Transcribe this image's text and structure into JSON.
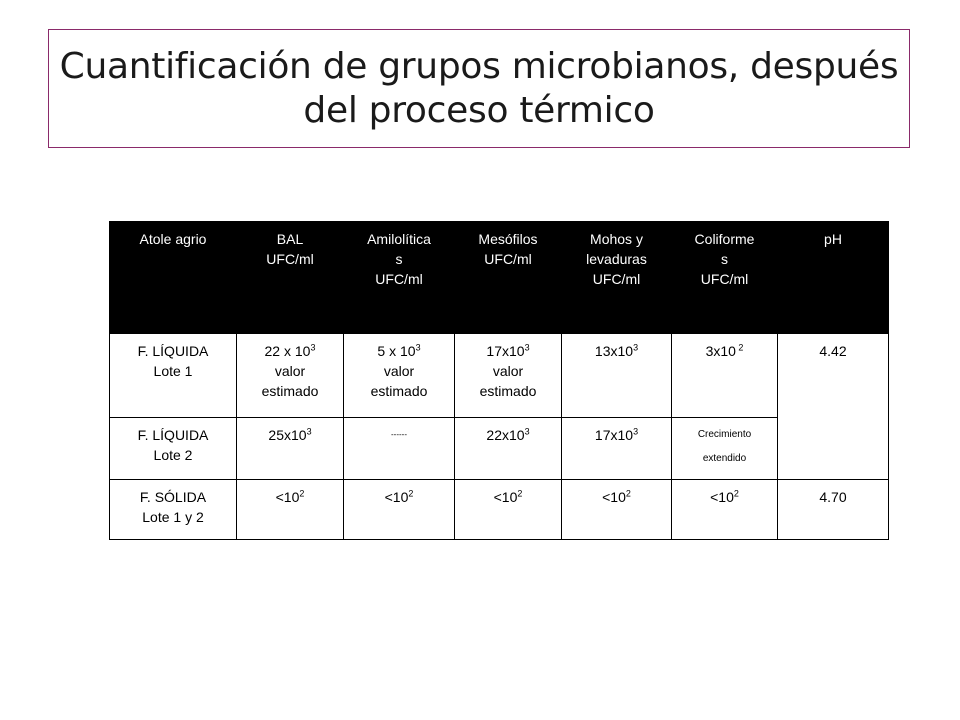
{
  "title": {
    "line1": "Cuantificación de grupos microbianos, después",
    "line2": "del proceso térmico"
  },
  "table": {
    "headers": [
      {
        "lines": [
          "Atole agrio"
        ]
      },
      {
        "lines": [
          "BAL",
          "UFC/ml"
        ]
      },
      {
        "lines": [
          "Amilolítica",
          "s",
          "UFC/ml"
        ]
      },
      {
        "lines": [
          "Mesófilos",
          "UFC/ml"
        ]
      },
      {
        "lines": [
          "Mohos y",
          "levaduras",
          "UFC/ml"
        ]
      },
      {
        "lines": [
          "Coliforme",
          "s",
          "UFC/ml"
        ]
      },
      {
        "lines": [
          "pH"
        ]
      }
    ],
    "rows": [
      {
        "label": [
          "F. LÍQUIDA",
          "Lote 1"
        ],
        "bal": {
          "base": "22 x 10",
          "exp": "3",
          "note": [
            "valor",
            "estimado"
          ]
        },
        "amilo": {
          "base": "5 x 10",
          "exp": "3",
          "note": [
            "valor",
            "estimado"
          ]
        },
        "meso": {
          "base": "17x10",
          "exp": "3",
          "note": [
            "valor",
            "estimado"
          ]
        },
        "mohos": {
          "base": "13x10",
          "exp": "3"
        },
        "coli": {
          "base": "3x10",
          "exp": " 2"
        },
        "ph": "4.42"
      },
      {
        "label": [
          "F. LÍQUIDA",
          "Lote 2"
        ],
        "bal": {
          "base": "25x10",
          "exp": "3"
        },
        "amilo": "------",
        "meso": {
          "base": "22x10",
          "exp": "3"
        },
        "mohos": {
          "base": "17x10",
          "exp": "3"
        },
        "coli": [
          "Crecimiento",
          "extendido"
        ]
      },
      {
        "label": [
          "F. SÓLIDA",
          "Lote 1 y 2"
        ],
        "bal": {
          "base": "<10",
          "exp": "2"
        },
        "amilo": {
          "base": "<10",
          "exp": "2"
        },
        "meso": {
          "base": "<10",
          "exp": "2"
        },
        "mohos": {
          "base": "<10",
          "exp": "2"
        },
        "coli": {
          "base": "<10",
          "exp": "2"
        },
        "ph": "4.70"
      }
    ]
  }
}
